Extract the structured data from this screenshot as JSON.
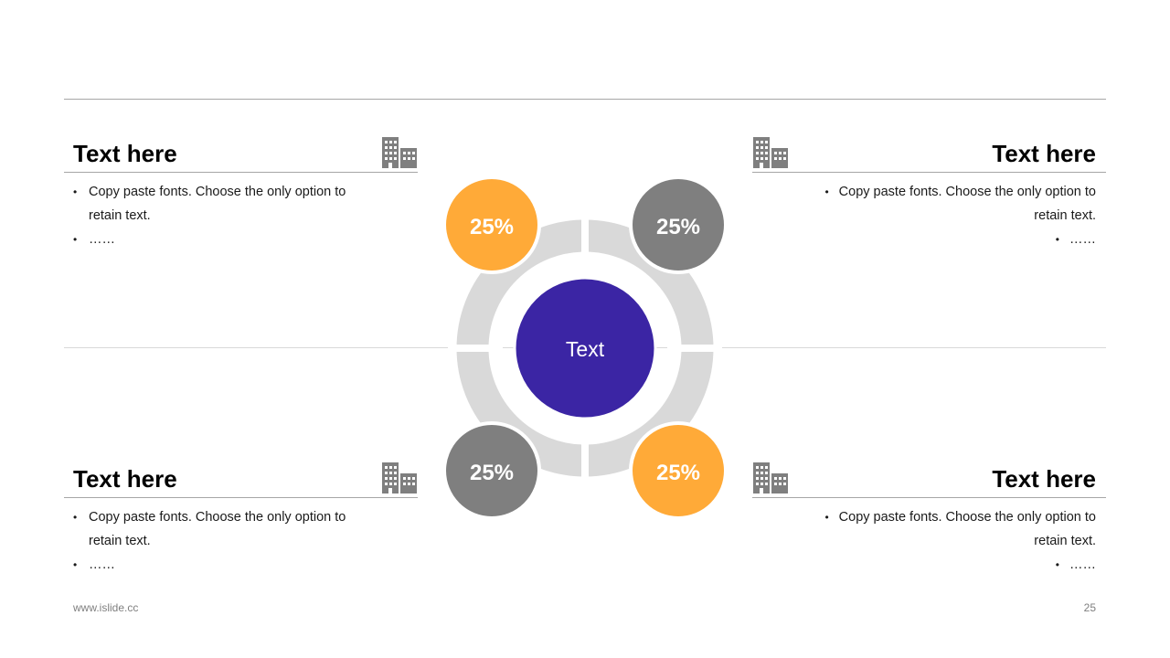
{
  "colors": {
    "orange": "#FFAA38",
    "gray": "#7F7F7F",
    "center": "#3B25A4",
    "ring": "#D9D9D9",
    "icon": "#7F7F7F"
  },
  "center_label": "Text",
  "nodes": [
    {
      "label": "25%",
      "color": "orange"
    },
    {
      "label": "25%",
      "color": "gray"
    },
    {
      "label": "25%",
      "color": "gray"
    },
    {
      "label": "25%",
      "color": "orange"
    }
  ],
  "blocks": {
    "top_left": {
      "title": "Text here",
      "bullets": [
        "Copy paste fonts. Choose the only option to retain text.",
        "……"
      ],
      "icon": "building-icon"
    },
    "top_right": {
      "title": "Text here",
      "bullets": [
        "Copy paste fonts. Choose the only option to retain text.",
        "……"
      ],
      "icon": "building-icon"
    },
    "bottom_left": {
      "title": "Text here",
      "bullets": [
        "Copy paste fonts. Choose the only option to retain text.",
        "……"
      ],
      "icon": "building-icon"
    },
    "bottom_right": {
      "title": "Text here",
      "bullets": [
        "Copy paste fonts. Choose the only option to retain text.",
        "……"
      ],
      "icon": "building-icon"
    }
  },
  "footer": {
    "website": "www.islide.cc",
    "page_number": "25"
  }
}
